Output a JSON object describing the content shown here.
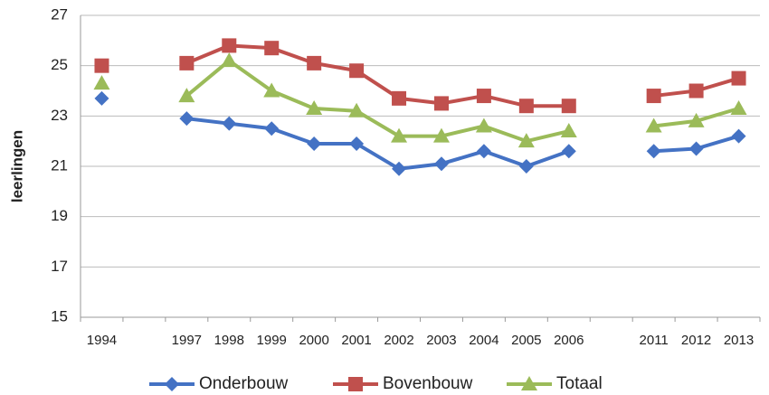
{
  "chart_data": {
    "type": "line",
    "y_label": "leerlingen",
    "categories": [
      "1994",
      null,
      "1997",
      "1998",
      "1999",
      "2000",
      "2001",
      "2002",
      "2003",
      "2004",
      "2005",
      "2006",
      null,
      "2011",
      "2012",
      "2013"
    ],
    "series": [
      {
        "name": "Onderbouw",
        "color": "#4472c4",
        "marker": "diamond",
        "values": [
          23.7,
          null,
          22.9,
          22.7,
          22.5,
          21.9,
          21.9,
          20.9,
          21.1,
          21.6,
          21.0,
          21.6,
          null,
          21.6,
          21.7,
          22.2
        ]
      },
      {
        "name": "Bovenbouw",
        "color": "#c0504d",
        "marker": "square",
        "values": [
          25.0,
          null,
          25.1,
          25.8,
          25.7,
          25.1,
          24.8,
          23.7,
          23.5,
          23.8,
          23.4,
          23.4,
          null,
          23.8,
          24.0,
          24.5
        ]
      },
      {
        "name": "Totaal",
        "color": "#9bbb59",
        "marker": "triangle",
        "values": [
          24.3,
          null,
          23.8,
          25.2,
          24.0,
          23.3,
          23.2,
          22.2,
          22.2,
          22.6,
          22.0,
          22.4,
          null,
          22.6,
          22.8,
          23.3
        ]
      }
    ],
    "ylim": [
      15,
      27
    ],
    "yticks": [
      15,
      17,
      19,
      21,
      23,
      25,
      27
    ],
    "grid": true
  }
}
